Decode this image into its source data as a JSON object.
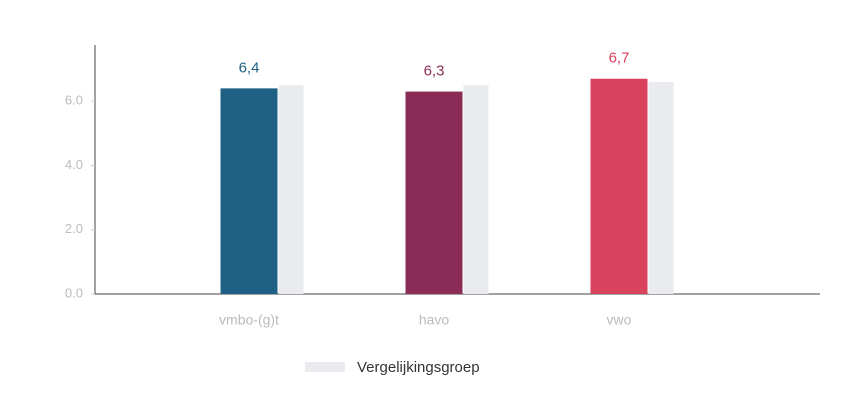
{
  "chart_data": {
    "type": "bar",
    "categories": [
      "vmbo-(g)t",
      "havo",
      "vwo"
    ],
    "series": [
      {
        "colors": [
          "#1f6185",
          "#8a2c55",
          "#d9425c"
        ],
        "values": [
          6.4,
          6.3,
          6.7
        ],
        "value_labels": [
          "6,4",
          "6,3",
          "6,7"
        ]
      },
      {
        "name": "Vergelijkingsgroep",
        "color": "#e9ebef",
        "values": [
          6.5,
          6.5,
          6.6
        ]
      }
    ],
    "ylim": [
      0,
      7.75
    ],
    "yticks": [
      {
        "value": 0,
        "label": "0.0"
      },
      {
        "value": 2,
        "label": "2.0"
      },
      {
        "value": 4,
        "label": "4.0"
      },
      {
        "value": 6,
        "label": "6.0"
      }
    ],
    "legend": "bottom"
  }
}
